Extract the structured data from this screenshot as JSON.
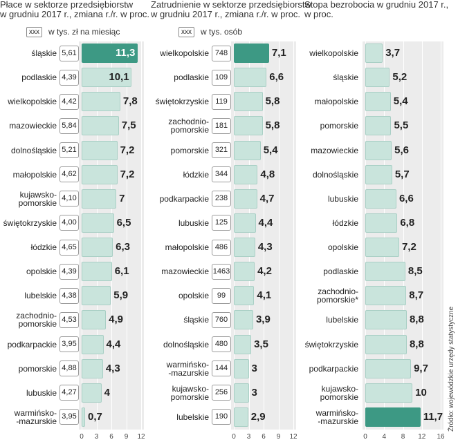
{
  "chart_data": [
    {
      "type": "bar",
      "title": "Płace w sektorze przedsiębiorstw\nw grudniu 2017 r., zmiana r./r. w proc.",
      "legend_box": "xxx",
      "legend_text": "w tys. zł na miesiąc",
      "categories": [
        "śląskie",
        "podlaskie",
        "wielkopolskie",
        "mazowieckie",
        "dolnośląskie",
        "małopolskie",
        "kujawsko-\npomorskie",
        "świętokrzyskie",
        "łódzkie",
        "opolskie",
        "lubelskie",
        "zachodnio-\npomorskie",
        "podkarpackie",
        "pomorskie",
        "lubuskie",
        "warmińsko-\n-mazurskie"
      ],
      "values": [
        11.3,
        10.1,
        7.8,
        7.5,
        7.2,
        7.2,
        7,
        6.5,
        6.3,
        6.1,
        5.9,
        4.9,
        4.4,
        4.3,
        4,
        0.7
      ],
      "value_labels": [
        "11,3",
        "10,1",
        "7,8",
        "7,5",
        "7,2",
        "7,2",
        "7",
        "6,5",
        "6,3",
        "6,1",
        "5,9",
        "4,9",
        "4,4",
        "4,3",
        "4",
        "0,7"
      ],
      "box_values": [
        5.61,
        4.39,
        4.42,
        5.84,
        5.21,
        4.62,
        4.1,
        4.0,
        4.65,
        4.39,
        4.38,
        4.53,
        3.95,
        4.88,
        4.27,
        3.95
      ],
      "box_value_labels": [
        "5,61",
        "4,39",
        "4,42",
        "5,84",
        "5,21",
        "4,62",
        "4,10",
        "4,00",
        "4,65",
        "4,39",
        "4,38",
        "4,53",
        "3,95",
        "4,88",
        "4,27",
        "3,95"
      ],
      "xlim": [
        0,
        12
      ],
      "xticks": [
        0,
        3,
        6,
        9,
        12
      ],
      "color": "#c9e4dc",
      "highlight_color": "#3d9984",
      "highlight_index": 0
    },
    {
      "type": "bar",
      "title": "Zatrudnienie w sektorze przedsiębiorstw\nw grudniu 2017 r., zmiana r./r. w proc.",
      "legend_box": "xxx",
      "legend_text": "w tys. osób",
      "categories": [
        "wielkopolskie",
        "podlaskie",
        "świętokrzyskie",
        "zachodnio-\npomorskie",
        "pomorskie",
        "łódzkie",
        "podkarpackie",
        "lubuskie",
        "małopolskie",
        "mazowieckie",
        "opolskie",
        "śląskie",
        "dolnośląskie",
        "warmińsko-\n-mazurskie",
        "kujawsko-\npomorskie",
        "lubelskie"
      ],
      "values": [
        7.1,
        6.6,
        5.8,
        5.8,
        5.4,
        4.8,
        4.7,
        4.4,
        4.3,
        4.2,
        4.1,
        3.9,
        3.5,
        3,
        3,
        2.9
      ],
      "value_labels": [
        "7,1",
        "6,6",
        "5,8",
        "5,8",
        "5,4",
        "4,8",
        "4,7",
        "4,4",
        "4,3",
        "4,2",
        "4,1",
        "3,9",
        "3,5",
        "3",
        "3",
        "2,9"
      ],
      "box_values": [
        748,
        109,
        119,
        181,
        321,
        344,
        238,
        125,
        486,
        1463,
        99,
        760,
        480,
        144,
        256,
        190
      ],
      "xlim": [
        0,
        12
      ],
      "xticks": [
        0,
        3,
        6,
        9,
        12
      ],
      "color": "#c9e4dc",
      "highlight_color": "#3d9984",
      "highlight_index": 0
    },
    {
      "type": "bar",
      "title": "Stopa bezrobocia w grudniu 2017 r.,\nw proc.",
      "categories": [
        "wielkopolskie",
        "śląskie",
        "małopolskie",
        "pomorskie",
        "mazowieckie",
        "dolnośląskie",
        "lubuskie",
        "łódzkie",
        "opolskie",
        "podlaskie",
        "zachodnio-\npomorskie*",
        "lubelskie",
        "świętokrzyskie",
        "podkarpackie",
        "kujawsko-\npomorskie",
        "warmińsko-\n-mazurskie"
      ],
      "values": [
        3.7,
        5.2,
        5.4,
        5.5,
        5.6,
        5.7,
        6.6,
        6.8,
        7.2,
        8.5,
        8.7,
        8.8,
        8.8,
        9.7,
        10,
        11.7
      ],
      "value_labels": [
        "3,7",
        "5,2",
        "5,4",
        "5,5",
        "5,6",
        "5,7",
        "6,6",
        "6,8",
        "7,2",
        "8,5",
        "8,7",
        "8,8",
        "8,8",
        "9,7",
        "10",
        "11,7"
      ],
      "xlim": [
        0,
        16
      ],
      "xticks": [
        0,
        4,
        8,
        12,
        16
      ],
      "color": "#c9e4dc",
      "highlight_color": "#3d9984",
      "highlight_index": 15
    }
  ],
  "source": "Źródło: wojewódzkie urzędy statystyczne"
}
